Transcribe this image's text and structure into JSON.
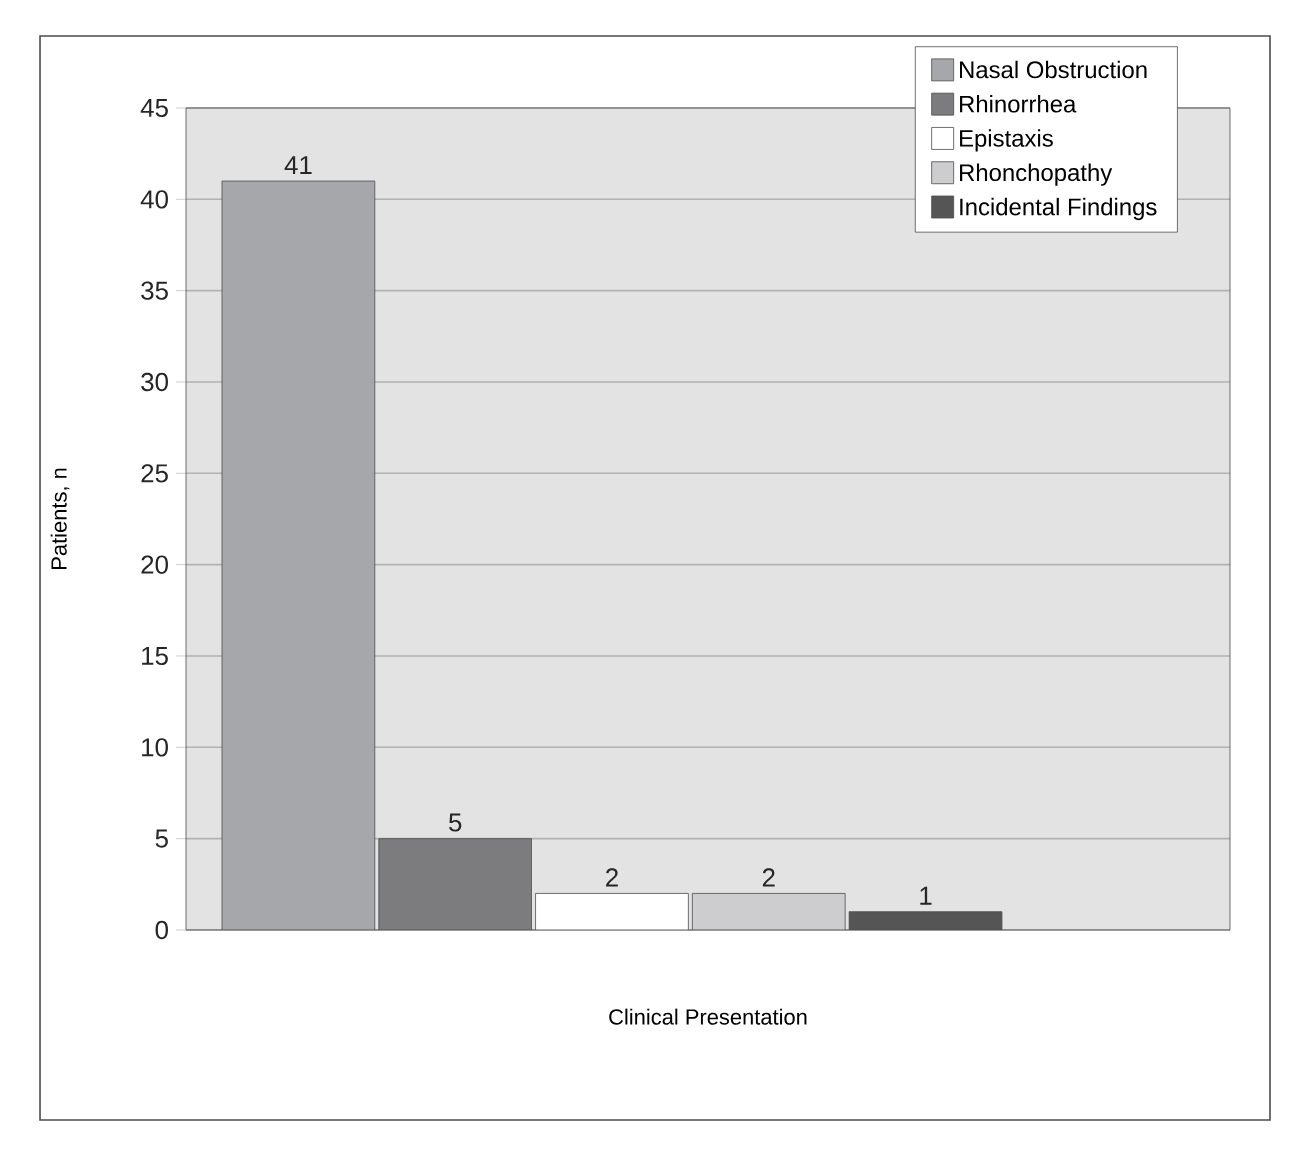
{
  "chart_data": {
    "type": "bar",
    "xlabel": "Clinical Presentation",
    "ylabel": "Patients, n",
    "categories": [
      null
    ],
    "series": [
      {
        "name": "Nasal Obstruction",
        "color": "#a6a7aa",
        "values": [
          41
        ]
      },
      {
        "name": "Rhinorrhea",
        "color": "#7c7c7e",
        "values": [
          5
        ]
      },
      {
        "name": "Epistaxis",
        "color": "#ffffff",
        "values": [
          2
        ]
      },
      {
        "name": "Rhonchopathy",
        "color": "#cdcdcf",
        "values": [
          2
        ]
      },
      {
        "name": "Incidental Findings",
        "color": "#555555",
        "values": [
          1
        ]
      }
    ],
    "ylim": [
      0,
      45
    ],
    "yticks": [
      0,
      5,
      10,
      15,
      20,
      25,
      30,
      35,
      40,
      45
    ],
    "grid": "y",
    "legend": "top right",
    "data_labels": true
  }
}
